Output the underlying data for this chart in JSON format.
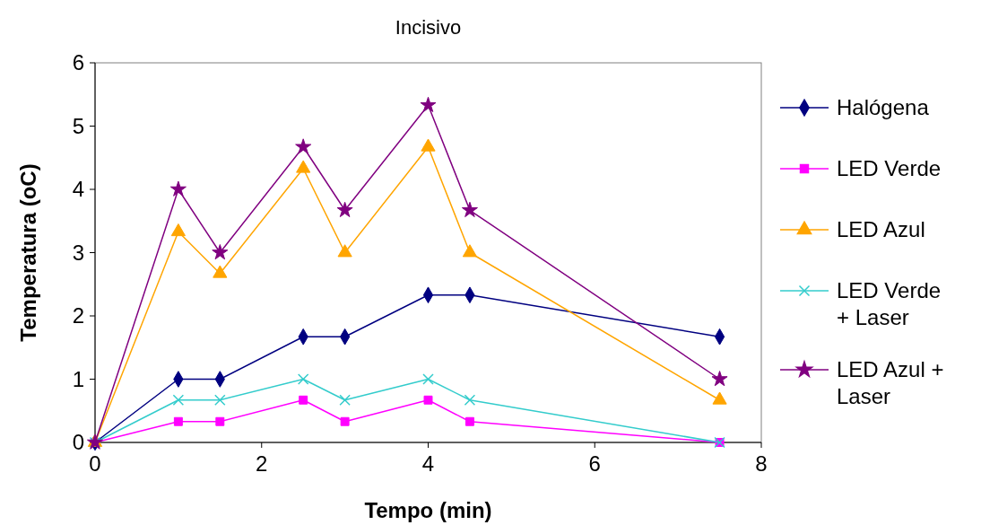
{
  "chart_data": {
    "type": "line",
    "title": "Incisivo",
    "xlabel": "Tempo (min)",
    "ylabel": "Temperatura (oC)",
    "x": [
      0,
      1,
      1.5,
      2.5,
      3,
      4,
      4.5,
      7.5
    ],
    "xlim": [
      0,
      8
    ],
    "xticks": [
      0,
      2,
      4,
      6,
      8
    ],
    "ylim": [
      0,
      6
    ],
    "yticks": [
      0,
      1,
      2,
      3,
      4,
      5,
      6
    ],
    "grid": false,
    "legend": "right",
    "line_style": "solid",
    "series": [
      {
        "name": "Halógena",
        "color": "#000080",
        "marker": "diamond",
        "values": [
          0,
          1,
          1,
          1.67,
          1.67,
          2.33,
          2.33,
          1.67
        ]
      },
      {
        "name": "LED Verde",
        "color": "#ff00ff",
        "marker": "square",
        "values": [
          0,
          0.33,
          0.33,
          0.67,
          0.33,
          0.67,
          0.33,
          0
        ]
      },
      {
        "name": "LED Azul",
        "color": "#ffa500",
        "marker": "triangle",
        "values": [
          0,
          3.33,
          2.67,
          4.33,
          3,
          4.67,
          3,
          0.67
        ]
      },
      {
        "name": "LED Verde + Laser",
        "color": "#33cccc",
        "marker": "cross",
        "values": [
          0,
          0.67,
          0.67,
          1,
          0.67,
          1,
          0.67,
          0
        ]
      },
      {
        "name": "LED Azul + Laser",
        "color": "#800080",
        "marker": "star",
        "values": [
          0,
          4,
          3,
          4.67,
          3.67,
          5.33,
          3.67,
          1
        ]
      }
    ]
  }
}
